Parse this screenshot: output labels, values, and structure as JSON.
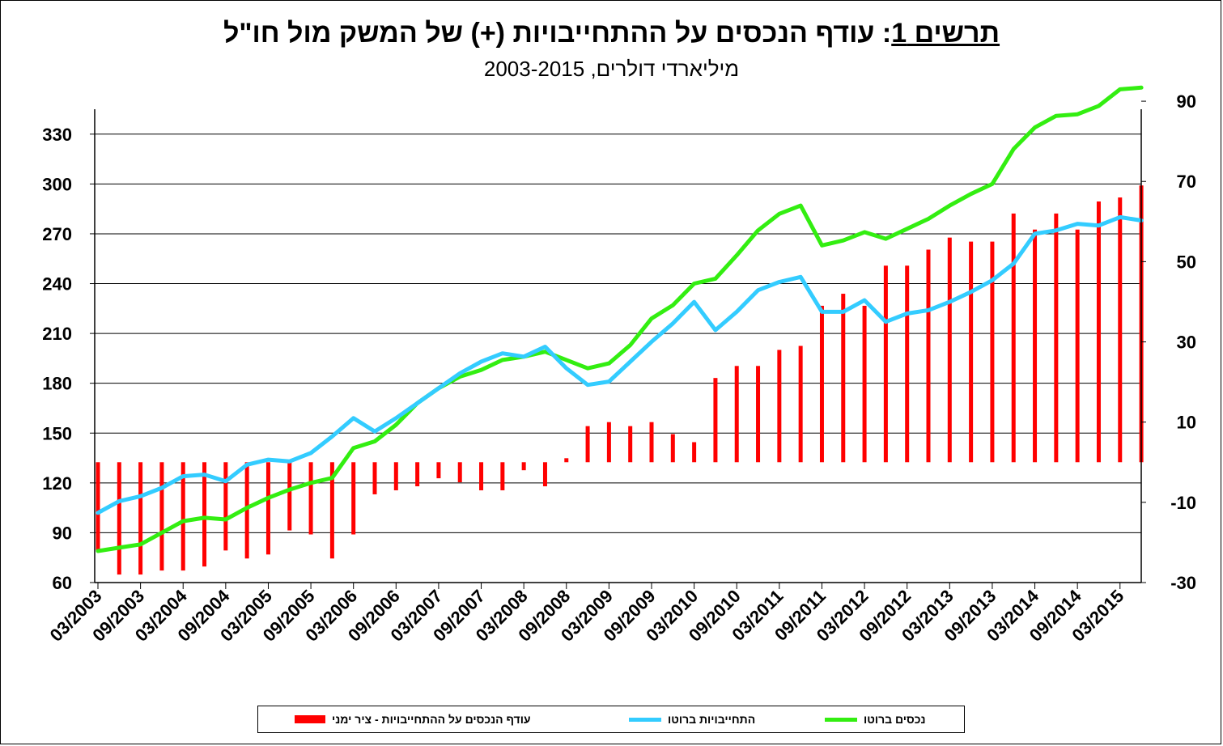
{
  "title": {
    "prefix": "תרשים 1",
    "text": ": עודף הנכסים על ההתחייבויות (+) של המשק מול חו\"ל",
    "subtitle": "מיליארדי דולרים, 2003-2015"
  },
  "legend": {
    "bar_label": "עודף הנכסים על ההתחייבויות - ציר ימני",
    "liabilities_label": "התחייבויות ברוטו",
    "assets_label": "נכסים ברוטו"
  },
  "colors": {
    "bar": "#ff0000",
    "liabilities": "#33ccff",
    "assets": "#33ee11",
    "grid": "#000000"
  },
  "chart_data": {
    "type": "bar+line",
    "x_tick_labels": [
      "03/2003",
      "09/2003",
      "03/2004",
      "09/2004",
      "03/2005",
      "09/2005",
      "03/2006",
      "09/2006",
      "03/2007",
      "09/2007",
      "03/2008",
      "09/2008",
      "03/2009",
      "09/2009",
      "03/2010",
      "09/2010",
      "03/2011",
      "09/2011",
      "03/2012",
      "09/2012",
      "03/2013",
      "09/2013",
      "03/2014",
      "09/2014",
      "03/2015"
    ],
    "left_axis": {
      "ylim": [
        60,
        345
      ],
      "ticks": [
        60,
        90,
        120,
        150,
        180,
        210,
        240,
        270,
        300,
        330
      ]
    },
    "right_axis": {
      "ylim": [
        -30,
        88
      ],
      "ticks": [
        -30,
        -10,
        10,
        30,
        50,
        70,
        90
      ]
    },
    "grid": "horizontal",
    "legend_position": "bottom",
    "series": [
      {
        "name": "נכסים ברוטו",
        "type": "line",
        "axis": "left",
        "values": [
          79,
          81,
          83,
          90,
          97,
          99,
          98,
          105,
          111,
          116,
          120,
          123,
          141,
          145,
          155,
          168,
          177,
          184,
          188,
          194,
          196,
          199,
          194,
          189,
          192,
          203,
          219,
          227,
          240,
          243,
          257,
          272,
          282,
          287,
          263,
          266,
          271,
          267,
          273,
          279,
          287,
          294,
          300,
          321,
          334,
          341,
          342,
          347,
          357,
          358
        ]
      },
      {
        "name": "התחייבויות ברוטו",
        "type": "line",
        "axis": "left",
        "values": [
          102,
          109,
          112,
          117,
          124,
          125,
          121,
          131,
          134,
          133,
          138,
          148,
          159,
          151,
          159,
          168,
          177,
          186,
          193,
          198,
          196,
          202,
          189,
          179,
          181,
          193,
          205,
          216,
          229,
          212,
          223,
          236,
          241,
          244,
          223,
          223,
          230,
          217,
          222,
          224,
          229,
          235,
          242,
          252,
          270,
          272,
          276,
          275,
          280,
          278
        ]
      },
      {
        "name": "עודף הנכסים על ההתחייבויות - ציר ימני",
        "type": "bar",
        "axis": "right",
        "values": [
          -22,
          -28,
          -28,
          -27,
          -27,
          -26,
          -22,
          -24,
          -23,
          -17,
          -18,
          -24,
          -18,
          -8,
          -7,
          -6,
          -4,
          -5,
          -7,
          -7,
          -2,
          -6,
          1,
          9,
          10,
          9,
          10,
          7,
          5,
          21,
          24,
          24,
          28,
          29,
          39,
          42,
          39,
          49,
          49,
          53,
          56,
          55,
          55,
          62,
          58,
          62,
          58,
          65,
          66,
          69
        ]
      }
    ]
  }
}
